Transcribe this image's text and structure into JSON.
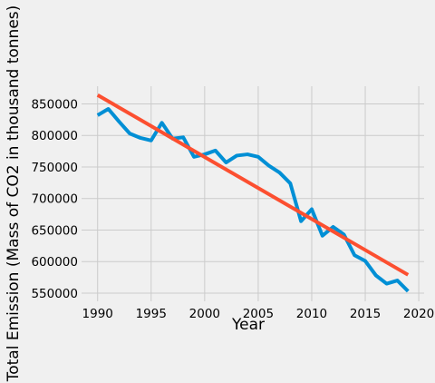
{
  "chart_data": {
    "type": "line",
    "style": "fivethirtyeight",
    "background": "#f0f0f0",
    "grid": true,
    "title": "",
    "xlabel": "Year",
    "ylabel": "Total Emission (Mass of CO2 in thousand tonnes)",
    "xlim": [
      1988.5,
      2020.5
    ],
    "ylim": [
      537000,
      878000
    ],
    "xticks": [
      1990,
      1995,
      2000,
      2005,
      2010,
      2015,
      2020
    ],
    "yticks": [
      550000,
      600000,
      650000,
      700000,
      750000,
      800000,
      850000
    ],
    "series": [
      {
        "color": "#008fd5",
        "x": [
          1990,
          1991,
          1992,
          1993,
          1994,
          1995,
          1996,
          1997,
          1998,
          1999,
          2000,
          2001,
          2002,
          2003,
          2004,
          2005,
          2006,
          2007,
          2008,
          2009,
          2010,
          2011,
          2012,
          2013,
          2014,
          2015,
          2016,
          2017,
          2018,
          2019
        ],
        "y": [
          832000,
          842000,
          822000,
          803000,
          796000,
          792000,
          820000,
          795000,
          797000,
          766000,
          770000,
          776000,
          757000,
          768000,
          770000,
          766000,
          752000,
          741000,
          724000,
          664000,
          683000,
          641000,
          655000,
          643000,
          610000,
          601000,
          578000,
          565000,
          570000,
          553000
        ]
      },
      {
        "color": "#fc4f30",
        "x": [
          1990,
          2019
        ],
        "y": [
          864000,
          579000
        ]
      }
    ]
  }
}
